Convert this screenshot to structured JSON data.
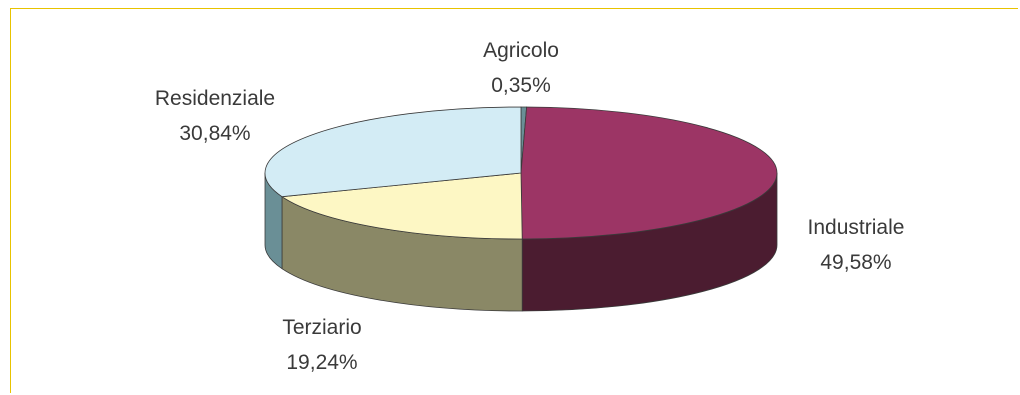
{
  "chart_data": {
    "type": "pie",
    "title": "",
    "slices": [
      {
        "label": "Agricolo",
        "value_text": "0,35%",
        "value": 0.35,
        "top_color": "#6a8f96",
        "side_color": "#5b8088"
      },
      {
        "label": "Industriale",
        "value_text": "49,58%",
        "value": 49.58,
        "top_color": "#9c3565",
        "side_color": "#4b1c30"
      },
      {
        "label": "Terziario",
        "value_text": "19,24%",
        "value": 19.24,
        "top_color": "#fdf7c4",
        "side_color": "#8a8866"
      },
      {
        "label": "Residenziale",
        "value_text": "30,84%",
        "value": 30.84,
        "top_color": "#d3ecf5",
        "side_color": "#6a8f96"
      }
    ],
    "style": "3d"
  }
}
